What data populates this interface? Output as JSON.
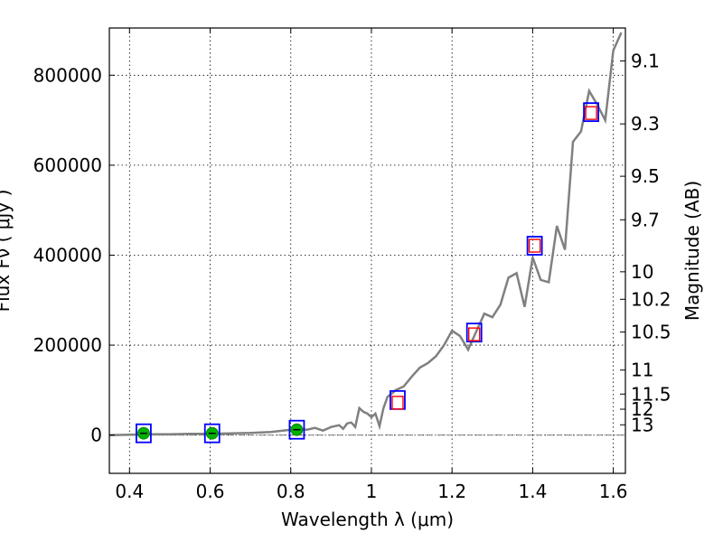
{
  "chart_data": {
    "type": "line",
    "xlabel": "Wavelength  λ (μm)",
    "ylabel": "Flux  Fν  ( μJy )",
    "y2label": "Magnitude (AB)",
    "xlim": [
      0.35,
      1.63
    ],
    "ylim": [
      -85000,
      905000
    ],
    "grid": true,
    "x_ticks": [
      0.4,
      0.6,
      0.8,
      1.0,
      1.2,
      1.4,
      1.6
    ],
    "x_tick_labels": [
      "0.4",
      "0.6",
      "0.8",
      "1",
      "1.2",
      "1.4",
      "1.6"
    ],
    "y_ticks": [
      0,
      200000,
      400000,
      600000,
      800000
    ],
    "y_tick_labels": [
      "0",
      "200000",
      "400000",
      "600000",
      "800000"
    ],
    "mag_ticks": [
      "9.1",
      "9.3",
      "9.5",
      "9.7",
      "10",
      "10.2",
      "10.5",
      "11",
      "11.5",
      "12",
      "13"
    ],
    "colors": {
      "spectrum": "#808080",
      "model_box": "#0000ff",
      "observed_square": "#ff0000",
      "observed_point": "#00b000",
      "zero_line": "#808080"
    },
    "spectrum": {
      "x": [
        0.35,
        0.4,
        0.45,
        0.5,
        0.55,
        0.6,
        0.65,
        0.7,
        0.75,
        0.78,
        0.8,
        0.82,
        0.84,
        0.86,
        0.88,
        0.9,
        0.92,
        0.93,
        0.94,
        0.95,
        0.96,
        0.97,
        0.98,
        0.99,
        1.0,
        1.01,
        1.02,
        1.03,
        1.04,
        1.05,
        1.06,
        1.08,
        1.1,
        1.12,
        1.14,
        1.16,
        1.18,
        1.2,
        1.22,
        1.24,
        1.26,
        1.28,
        1.3,
        1.32,
        1.34,
        1.36,
        1.38,
        1.4,
        1.42,
        1.44,
        1.46,
        1.48,
        1.5,
        1.52,
        1.54,
        1.56,
        1.58,
        1.6,
        1.62
      ],
      "y": [
        0,
        1000,
        2000,
        2000,
        3000,
        3000,
        4000,
        5000,
        7000,
        10000,
        12000,
        14000,
        12000,
        16000,
        10000,
        18000,
        22000,
        14000,
        26000,
        28000,
        18000,
        60000,
        52000,
        48000,
        40000,
        48000,
        20000,
        60000,
        85000,
        92000,
        100000,
        108000,
        130000,
        150000,
        160000,
        175000,
        200000,
        232000,
        220000,
        190000,
        230000,
        270000,
        262000,
        290000,
        350000,
        360000,
        285000,
        395000,
        345000,
        340000,
        465000,
        412000,
        652000,
        675000,
        765000,
        735000,
        700000,
        855000,
        895000
      ]
    },
    "photometry": [
      {
        "x": 0.435,
        "model": 4000,
        "observed": 4000,
        "marker": "point"
      },
      {
        "x": 0.605,
        "model": 4000,
        "observed": 4000,
        "marker": "point"
      },
      {
        "x": 0.815,
        "model": 12000,
        "observed": 12000,
        "marker": "point"
      },
      {
        "x": 1.065,
        "model": 78000,
        "observed": 72000,
        "marker": "square"
      },
      {
        "x": 1.255,
        "model": 228000,
        "observed": 224000,
        "marker": "square"
      },
      {
        "x": 1.405,
        "model": 421000,
        "observed": 421000,
        "marker": "square"
      },
      {
        "x": 1.545,
        "model": 718000,
        "observed": 716000,
        "marker": "square"
      }
    ]
  }
}
